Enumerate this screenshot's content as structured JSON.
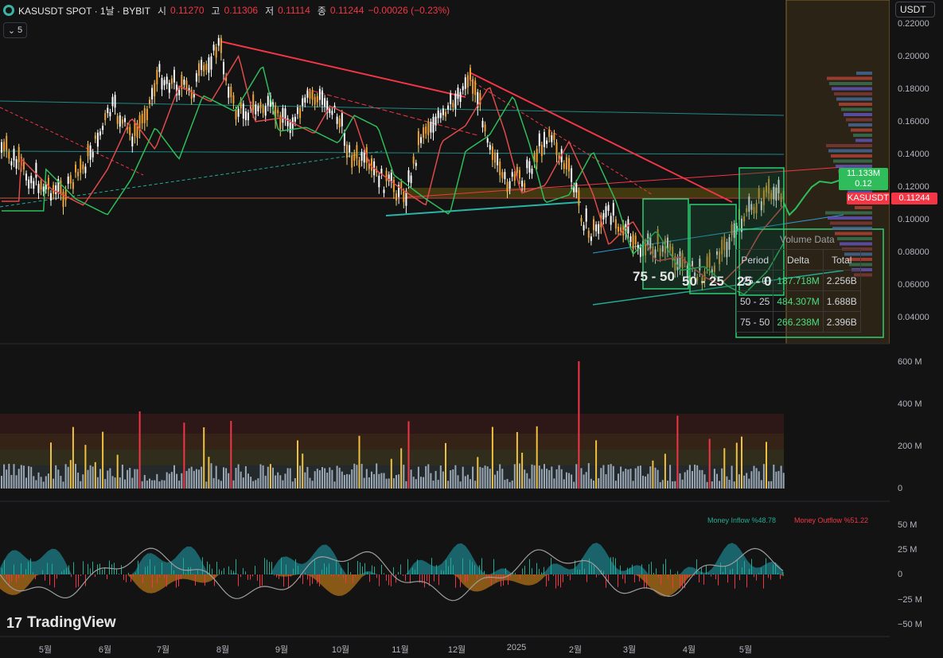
{
  "header": {
    "symbol": "KASUSDT SPOT · 1날 · BYBIT",
    "o_label": "시",
    "o_val": "0.11270",
    "h_label": "고",
    "h_val": "0.11306",
    "l_label": "저",
    "l_val": "0.11114",
    "c_label": "종",
    "c_val": "0.11244",
    "change": "−0.00026 (−0.23%)"
  },
  "indicator_toggle": {
    "icon": "chevron-down-icon",
    "count": "5"
  },
  "currency_button": "USDT",
  "price_axis": [
    "0.22000",
    "0.20000",
    "0.18000",
    "0.16000",
    "0.14000",
    "0.12000",
    "0.10000",
    "0.08000",
    "0.06000",
    "0.04000"
  ],
  "time_axis": [
    "5월",
    "6월",
    "7월",
    "8월",
    "9월",
    "10월",
    "11월",
    "12월",
    "2025",
    "2월",
    "3월",
    "4월",
    "5월"
  ],
  "volume_axis": [
    "600 M",
    "400 M",
    "200 M",
    "0"
  ],
  "flow_axis": [
    "50 M",
    "25 M",
    "0",
    "−25 M",
    "−50 M"
  ],
  "price_pill": {
    "volume": "11.133M",
    "value": "0.12"
  },
  "symbol_tag": {
    "name": "KASUSDT",
    "price": "0.11244"
  },
  "zones": [
    "75 - 50",
    "50 - 25",
    "25 - 0"
  ],
  "volume_data": {
    "title": "Volume Data",
    "headers": [
      "Period",
      "Delta",
      "Total"
    ],
    "rows": [
      {
        "period": "25 - 0",
        "delta": "187.718M",
        "total": "2.256B"
      },
      {
        "period": "50 - 25",
        "delta": "484.307M",
        "total": "1.688B"
      },
      {
        "period": "75 - 50",
        "delta": "266.238M",
        "total": "2.396B"
      }
    ]
  },
  "money_flow": {
    "inflow": "Money Inflow %48.78",
    "outflow": "Money Outflow %51.22"
  },
  "brand": "TradingView",
  "colors": {
    "bg": "#131313",
    "up": "#22ab94",
    "down": "#f23645",
    "trend": "#f23645",
    "accent": "#4ade80"
  }
}
